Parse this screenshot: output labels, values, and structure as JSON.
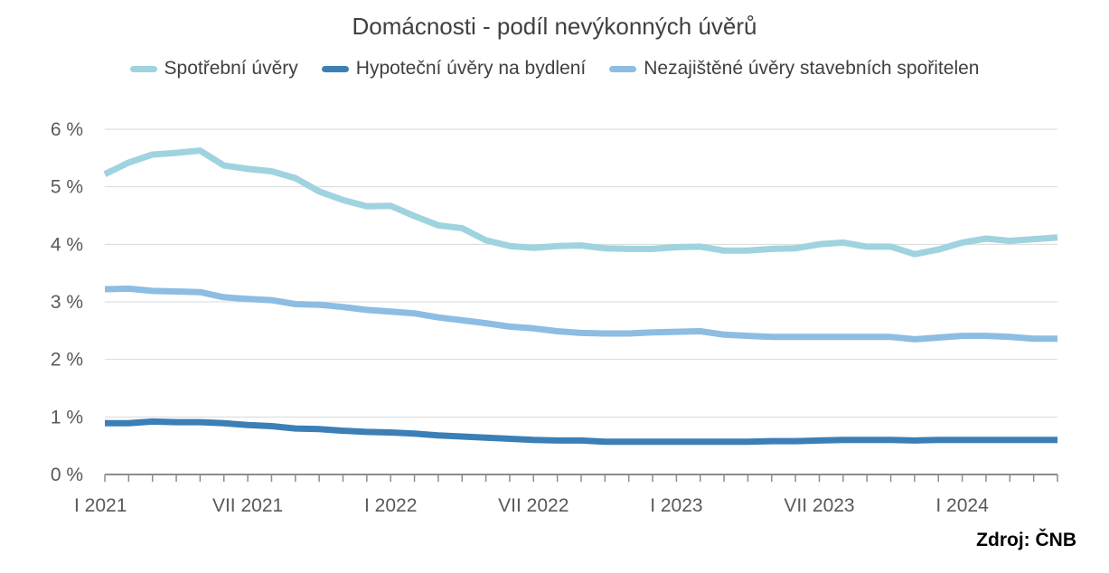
{
  "chart_data": {
    "type": "line",
    "title": "Domácnosti - podíl nevýkonných úvěrů",
    "xlabel": "",
    "ylabel": "",
    "ylim": [
      0,
      6
    ],
    "yticks": [
      "0 %",
      "1 %",
      "2 %",
      "3 %",
      "4 %",
      "5 %",
      "6 %"
    ],
    "xticks": [
      {
        "label": "I 2021",
        "index": 0
      },
      {
        "label": "VII 2021",
        "index": 6
      },
      {
        "label": "I 2022",
        "index": 12
      },
      {
        "label": "VII 2022",
        "index": 18
      },
      {
        "label": "I 2023",
        "index": 24
      },
      {
        "label": "VII 2023",
        "index": 30
      },
      {
        "label": "I 2024",
        "index": 36
      }
    ],
    "x_count": 41,
    "grid": true,
    "legend_position": "top",
    "series": [
      {
        "name": "Spotřební úvěry",
        "color": "#9fd3df",
        "values": [
          5.22,
          5.42,
          5.56,
          5.59,
          5.63,
          5.37,
          5.31,
          5.27,
          5.15,
          4.92,
          4.77,
          4.66,
          4.67,
          4.49,
          4.33,
          4.28,
          4.07,
          3.97,
          3.94,
          3.97,
          3.98,
          3.93,
          3.92,
          3.92,
          3.95,
          3.96,
          3.89,
          3.89,
          3.92,
          3.93,
          4.0,
          4.03,
          3.96,
          3.96,
          3.83,
          3.91,
          4.03,
          4.1,
          4.06,
          4.09,
          4.12
        ]
      },
      {
        "name": "Hypoteční úvěry na bydlení",
        "color": "#3b7fb6",
        "values": [
          0.89,
          0.89,
          0.92,
          0.91,
          0.91,
          0.89,
          0.86,
          0.84,
          0.8,
          0.79,
          0.76,
          0.74,
          0.73,
          0.71,
          0.68,
          0.66,
          0.64,
          0.62,
          0.6,
          0.59,
          0.59,
          0.57,
          0.57,
          0.57,
          0.57,
          0.57,
          0.57,
          0.57,
          0.58,
          0.58,
          0.59,
          0.6,
          0.6,
          0.6,
          0.59,
          0.6,
          0.6,
          0.6,
          0.6,
          0.6,
          0.6
        ]
      },
      {
        "name": "Nezajištěné úvěry stavebních spořitelen",
        "color": "#8dbde2",
        "values": [
          3.22,
          3.23,
          3.19,
          3.18,
          3.17,
          3.08,
          3.05,
          3.03,
          2.96,
          2.95,
          2.91,
          2.86,
          2.83,
          2.8,
          2.73,
          2.68,
          2.63,
          2.57,
          2.54,
          2.49,
          2.46,
          2.45,
          2.45,
          2.47,
          2.48,
          2.49,
          2.43,
          2.41,
          2.39,
          2.39,
          2.39,
          2.39,
          2.39,
          2.39,
          2.35,
          2.38,
          2.41,
          2.41,
          2.39,
          2.36,
          2.36
        ]
      }
    ]
  },
  "source_note": "Zdroj: ČNB"
}
